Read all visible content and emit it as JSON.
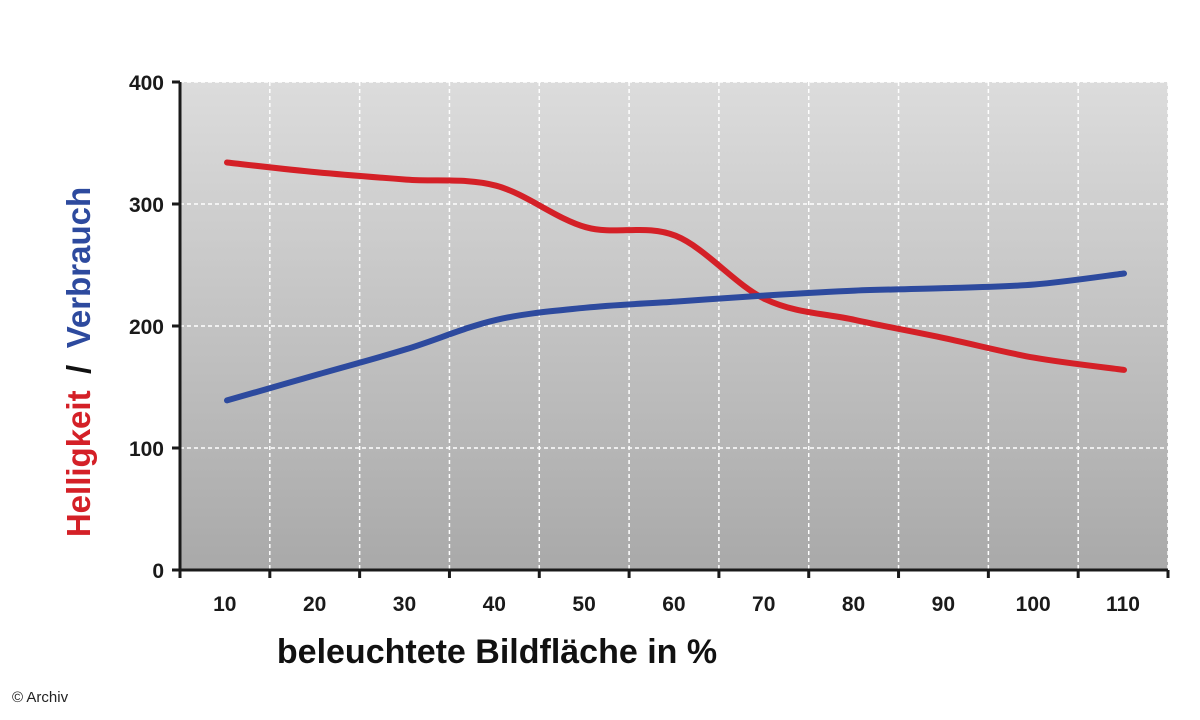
{
  "chart_data": {
    "type": "line",
    "x": [
      10,
      20,
      30,
      40,
      50,
      60,
      70,
      80,
      90,
      100,
      110
    ],
    "x_tick_labels": [
      "10",
      "20",
      "30",
      "40",
      "50",
      "60",
      "70",
      "80",
      "90",
      "100",
      "110"
    ],
    "y_ticks": [
      0,
      100,
      200,
      300,
      400
    ],
    "y_tick_labels": [
      "0",
      "100",
      "200",
      "300",
      "400"
    ],
    "xlim": [
      0,
      110
    ],
    "ylim": [
      0,
      400
    ],
    "xlabel": "beleuchtete Bildfläche in %",
    "ylabel_parts": [
      {
        "text": "Helligkeit",
        "color": "#d42027"
      },
      {
        "text": "/",
        "color": "#111111"
      },
      {
        "text": "Verbrauch",
        "color": "#2d4a9e"
      }
    ],
    "grid": true,
    "series": [
      {
        "key": "helligkeit",
        "color": "#d42027",
        "values": [
          334,
          326,
          320,
          315,
          281,
          274,
          222,
          205,
          190,
          174,
          164
        ]
      },
      {
        "key": "verbrauch",
        "color": "#2d4a9e",
        "values": [
          139,
          160,
          181,
          205,
          215,
          220,
          225,
          229,
          231,
          234,
          243
        ]
      }
    ],
    "colors": {
      "plot_top": "#dcdcdc",
      "plot_bottom": "#a9a9a9",
      "grid": "#ffffff",
      "axis": "#1a1a1a"
    }
  },
  "credit": "© Archiv"
}
